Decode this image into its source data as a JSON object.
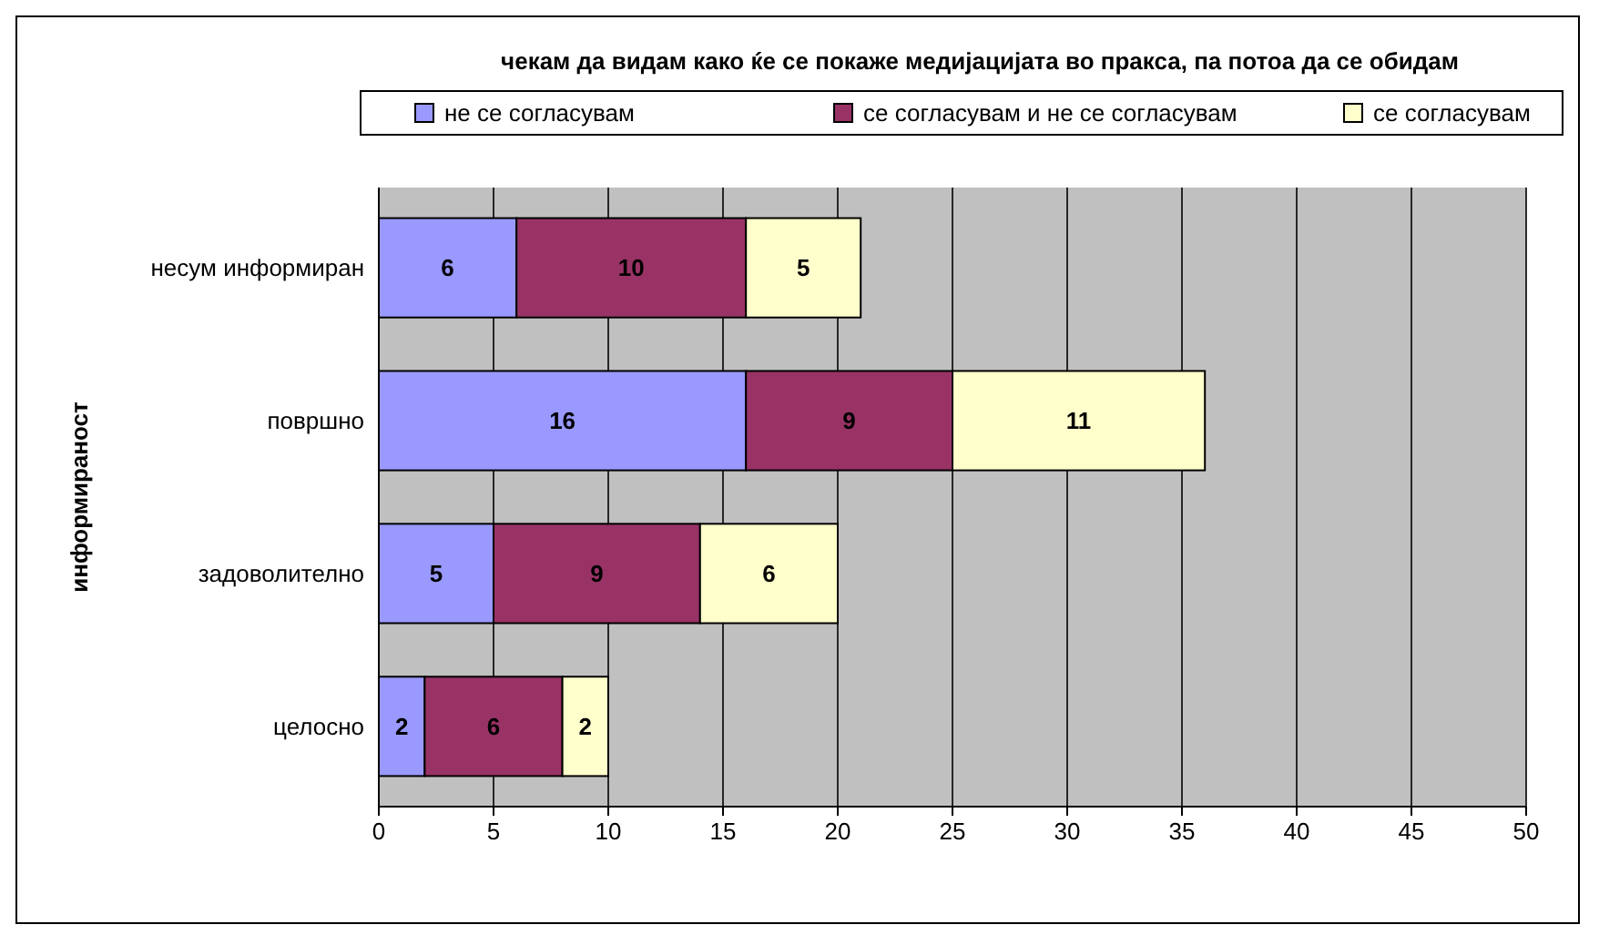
{
  "chart_data": {
    "type": "bar",
    "orientation": "horizontal",
    "stacked": true,
    "title": "чекам да видам како ќе се покаже медијацијата во пракса, па потоа да се обидам",
    "ylabel": "информираност",
    "categories": [
      "несум информиран",
      "површно",
      "задоволително",
      "целосно"
    ],
    "series": [
      {
        "name": "не се согласувам",
        "color": "#9999ff",
        "values": [
          6,
          16,
          5,
          2
        ]
      },
      {
        "name": "се согласувам и не се согласувам",
        "color": "#993366",
        "values": [
          10,
          9,
          9,
          6
        ]
      },
      {
        "name": "се согласувам",
        "color": "#ffffcc",
        "values": [
          5,
          11,
          6,
          2
        ]
      }
    ],
    "xlim": [
      0,
      50
    ],
    "xticks": [
      0,
      5,
      10,
      15,
      20,
      25,
      30,
      35,
      40,
      45,
      50
    ],
    "grid": "x",
    "legend": "top",
    "data_labels": true
  }
}
